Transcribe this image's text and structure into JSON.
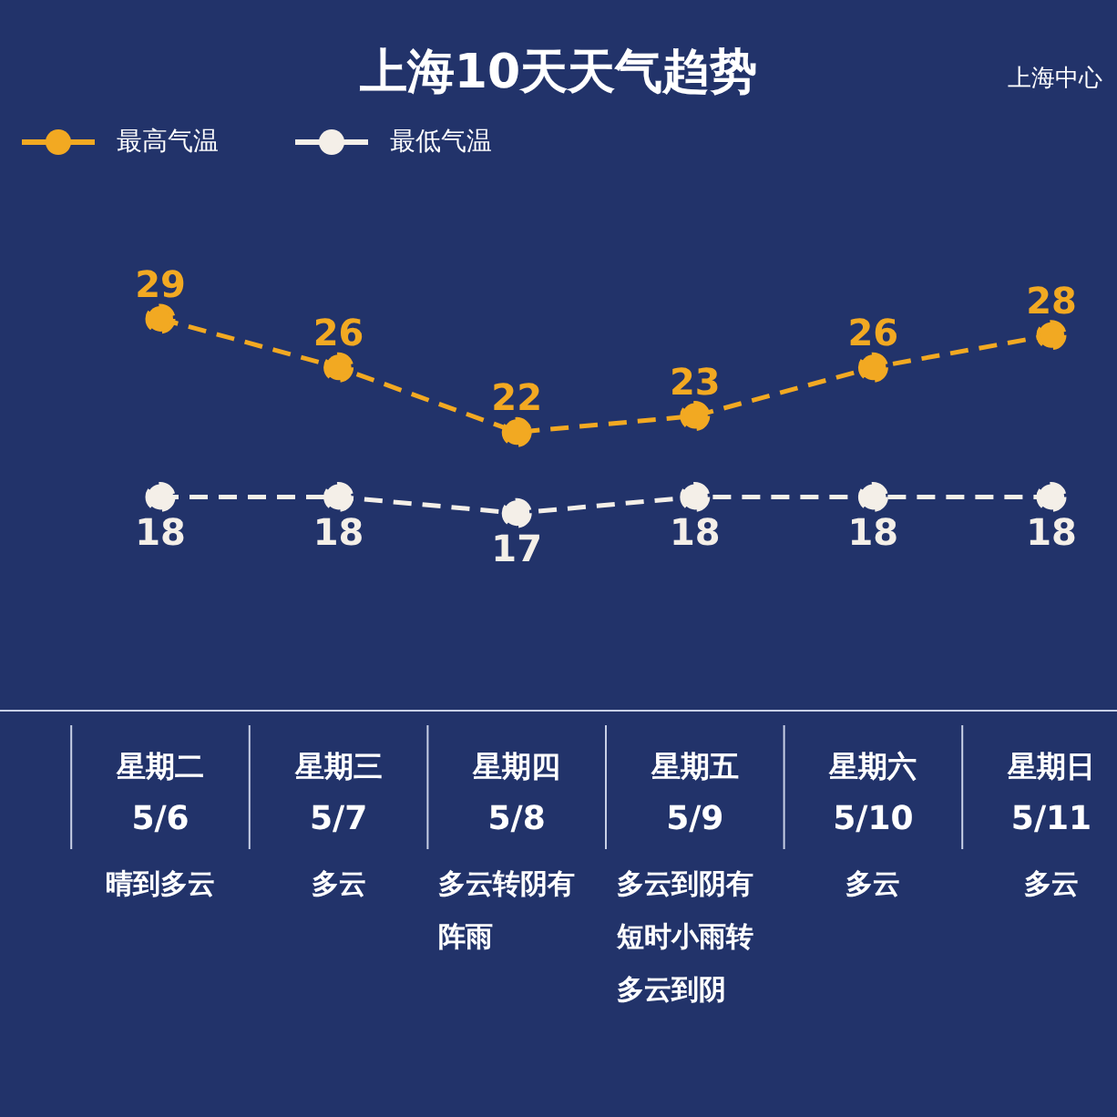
{
  "chart_data": {
    "type": "line",
    "title": "上海10天天气趋势",
    "subtitle": "上海中心",
    "categories": [
      "星期二\n5/6\n晴到多云",
      "星期三\n5/7\n多云",
      "星期四\n5/8\n多云转阴有阵雨",
      "星期五\n5/9\n多云到阴有短时小雨转多云到阴",
      "星期六\n5/10\n多云",
      "星期日\n5/11\n多云"
    ],
    "series": [
      {
        "name": "最高气温",
        "color": "#f2a922",
        "values": [
          29,
          26,
          22,
          23,
          26,
          28
        ]
      },
      {
        "name": "最低气温",
        "color": "#f4efe8",
        "values": [
          18,
          18,
          17,
          18,
          18,
          18
        ]
      }
    ],
    "data_labels": true,
    "legend": "top left",
    "marker": "circle",
    "line_style": "dashed"
  }
}
